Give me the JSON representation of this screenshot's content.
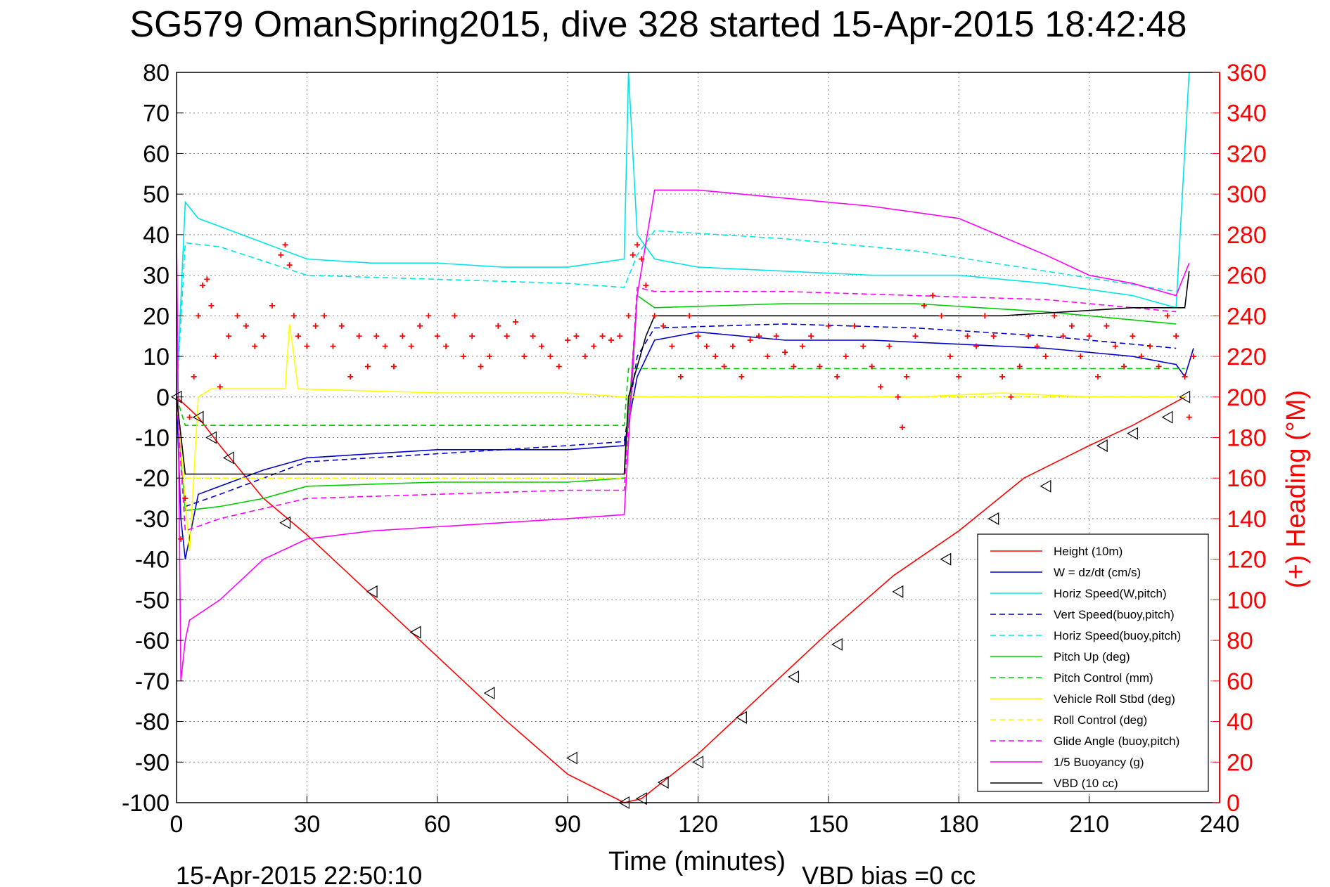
{
  "chart_data": {
    "type": "line",
    "title": "SG579 OmanSpring2015, dive 328 started 15-Apr-2015 18:42:48",
    "xlabel": "Time (minutes)",
    "ylabel_right": "(+) Heading (°M)",
    "xlim": [
      0,
      240
    ],
    "ylim": [
      -100,
      80
    ],
    "ylim_right": [
      0,
      360
    ],
    "x_ticks": [
      "0",
      "30",
      "60",
      "90",
      "120",
      "150",
      "180",
      "210",
      "240"
    ],
    "y_ticks": [
      "80",
      "70",
      "60",
      "50",
      "40",
      "30",
      "20",
      "10",
      "0",
      "-10",
      "-20",
      "-30",
      "-40",
      "-50",
      "-60",
      "-70",
      "-80",
      "-90",
      "-100"
    ],
    "y_ticks_right": [
      "360",
      "340",
      "320",
      "300",
      "280",
      "260",
      "240",
      "220",
      "200",
      "180",
      "160",
      "140",
      "120",
      "100",
      "80",
      "60",
      "40",
      "20",
      "0"
    ],
    "grid": true,
    "legend_position": "bottom-right",
    "footer_left": "15-Apr-2015 22:50:10",
    "footer_right": "VBD bias =0 cc",
    "series": [
      {
        "name": "Height (10m)",
        "color": "#ff0000",
        "style": "solid",
        "x": [
          0,
          5,
          10,
          20,
          30,
          45,
          60,
          75,
          90,
          103,
          107,
          120,
          135,
          150,
          165,
          180,
          195,
          210,
          220,
          232
        ],
        "y": [
          0,
          -5,
          -12,
          -25,
          -34,
          -49,
          -64,
          -79,
          -93,
          -100,
          -99,
          -88,
          -73,
          -58,
          -44,
          -33,
          -20,
          -12,
          -7,
          0
        ]
      },
      {
        "name": "W = dz/dt (cm/s)",
        "color": "#0000cc",
        "style": "solid",
        "x": [
          0,
          1,
          2,
          5,
          10,
          20,
          30,
          45,
          60,
          75,
          90,
          103,
          106,
          110,
          120,
          140,
          160,
          180,
          200,
          220,
          230,
          232,
          234
        ],
        "y": [
          0,
          -30,
          -40,
          -24,
          -22,
          -18,
          -15,
          -14,
          -13,
          -13,
          -13,
          -12,
          5,
          14,
          16,
          14,
          14,
          13,
          12,
          10,
          8,
          5,
          12
        ]
      },
      {
        "name": "Horiz Speed(W,pitch)",
        "color": "#00e5e5",
        "style": "solid",
        "x": [
          0,
          2,
          5,
          10,
          20,
          30,
          45,
          60,
          75,
          90,
          103,
          104,
          106,
          110,
          120,
          140,
          160,
          180,
          200,
          220,
          230,
          233
        ],
        "y": [
          0,
          48,
          44,
          42,
          38,
          34,
          33,
          33,
          32,
          32,
          34,
          80,
          40,
          34,
          32,
          31,
          30,
          30,
          28,
          25,
          22,
          80
        ]
      },
      {
        "name": "Vert Speed(buoy,pitch)",
        "color": "#0000cc",
        "style": "dashed",
        "x": [
          0,
          2,
          10,
          30,
          60,
          90,
          103,
          106,
          110,
          140,
          170,
          200,
          230
        ],
        "y": [
          0,
          -27,
          -24,
          -16,
          -14,
          -12,
          -11,
          10,
          17,
          18,
          17,
          15,
          12
        ]
      },
      {
        "name": "Horiz Speed(buoy,pitch)",
        "color": "#00e5e5",
        "style": "dashed",
        "x": [
          0,
          2,
          10,
          30,
          60,
          90,
          103,
          106,
          110,
          140,
          170,
          200,
          230
        ],
        "y": [
          0,
          38,
          37,
          30,
          29,
          28,
          27,
          35,
          41,
          39,
          36,
          31,
          26
        ]
      },
      {
        "name": "Pitch Up (deg)",
        "color": "#00cc00",
        "style": "solid",
        "x": [
          0,
          2,
          10,
          20,
          30,
          60,
          90,
          103,
          106,
          110,
          140,
          170,
          200,
          230
        ],
        "y": [
          0,
          -28,
          -27,
          -25,
          -22,
          -21,
          -21,
          -20,
          25,
          22,
          23,
          23,
          21,
          18
        ]
      },
      {
        "name": "Pitch Control (mm)",
        "color": "#00cc00",
        "style": "dashed",
        "x": [
          0,
          2,
          103,
          104,
          232
        ],
        "y": [
          0,
          -7,
          -7,
          7,
          7
        ]
      },
      {
        "name": "Vehicle Roll Stbd (deg)",
        "color": "#ffff00",
        "style": "solid",
        "x": [
          0,
          3,
          5,
          8,
          10,
          25,
          26,
          28,
          60,
          90,
          103,
          110,
          130,
          150,
          170,
          190,
          210,
          230
        ],
        "y": [
          0,
          -38,
          0,
          2,
          2,
          2,
          18,
          2,
          1,
          1,
          0,
          0,
          0,
          0,
          0,
          1,
          0,
          0
        ]
      },
      {
        "name": "Roll Control (deg)",
        "color": "#ffff00",
        "style": "dashed",
        "x": [
          0,
          2,
          103,
          104,
          232
        ],
        "y": [
          0,
          -20,
          -20,
          0,
          0
        ]
      },
      {
        "name": "Glide Angle (buoy,pitch)",
        "color": "#ff00ff",
        "style": "dashed",
        "x": [
          0,
          2,
          10,
          30,
          60,
          90,
          103,
          106,
          110,
          140,
          170,
          200,
          230
        ],
        "y": [
          0,
          -33,
          -30,
          -25,
          -24,
          -23,
          -23,
          27,
          26,
          26,
          25,
          24,
          21
        ]
      },
      {
        "name": "1/5 Buoyancy (g)",
        "color": "#ff00ff",
        "style": "solid",
        "x": [
          0,
          1,
          2,
          3,
          10,
          20,
          30,
          45,
          60,
          75,
          90,
          103,
          106,
          110,
          120,
          140,
          160,
          180,
          200,
          210,
          220,
          230,
          233
        ],
        "y": [
          40,
          -70,
          -60,
          -55,
          -50,
          -40,
          -35,
          -33,
          -32,
          -31,
          -30,
          -29,
          25,
          51,
          51,
          49,
          47,
          44,
          35,
          30,
          28,
          25,
          33
        ]
      },
      {
        "name": "VBD (10 cc)",
        "color": "#000000",
        "style": "solid",
        "x": [
          0,
          2,
          103,
          104,
          108,
          110,
          190,
          220,
          232,
          233
        ],
        "y": [
          0,
          -19,
          -19,
          0,
          15,
          20,
          20,
          22,
          22,
          31
        ]
      }
    ],
    "heading_series": {
      "name": "Heading",
      "color": "#ff0000",
      "marker": "+",
      "x": [
        1,
        2,
        3,
        4,
        5,
        6,
        7,
        8,
        9,
        10,
        12,
        14,
        16,
        18,
        20,
        22,
        24,
        25,
        26,
        27,
        28,
        30,
        32,
        34,
        36,
        38,
        40,
        42,
        44,
        46,
        48,
        50,
        52,
        54,
        56,
        58,
        60,
        62,
        64,
        66,
        68,
        70,
        72,
        74,
        76,
        78,
        80,
        82,
        84,
        86,
        88,
        90,
        92,
        94,
        96,
        98,
        100,
        102,
        104,
        105,
        106,
        107,
        108,
        110,
        112,
        114,
        116,
        118,
        120,
        122,
        124,
        126,
        128,
        130,
        132,
        134,
        136,
        138,
        140,
        142,
        144,
        146,
        148,
        150,
        152,
        154,
        156,
        158,
        160,
        162,
        164,
        166,
        167,
        168,
        170,
        172,
        174,
        176,
        178,
        180,
        182,
        184,
        186,
        188,
        190,
        192,
        194,
        196,
        198,
        200,
        202,
        204,
        206,
        208,
        210,
        212,
        214,
        216,
        218,
        220,
        222,
        224,
        226,
        228,
        230,
        232,
        233,
        234
      ],
      "y": [
        130,
        150,
        190,
        210,
        240,
        255,
        258,
        245,
        220,
        205,
        230,
        240,
        235,
        225,
        230,
        245,
        270,
        275,
        265,
        240,
        230,
        225,
        235,
        240,
        225,
        235,
        210,
        230,
        215,
        230,
        225,
        215,
        230,
        225,
        235,
        240,
        230,
        225,
        240,
        220,
        230,
        215,
        220,
        235,
        230,
        237,
        220,
        230,
        225,
        220,
        215,
        228,
        230,
        220,
        225,
        230,
        228,
        230,
        240,
        270,
        275,
        268,
        255,
        240,
        235,
        225,
        210,
        240,
        230,
        225,
        220,
        215,
        225,
        210,
        228,
        230,
        220,
        230,
        222,
        215,
        225,
        230,
        215,
        235,
        210,
        220,
        235,
        225,
        215,
        205,
        225,
        200,
        185,
        210,
        230,
        245,
        250,
        240,
        220,
        210,
        230,
        225,
        240,
        230,
        210,
        200,
        215,
        230,
        225,
        220,
        240,
        230,
        235,
        220,
        230,
        210,
        235,
        225,
        215,
        230,
        220,
        225,
        215,
        240,
        230,
        210,
        190,
        220
      ]
    },
    "triangle_markers": {
      "color": "#000000",
      "x": [
        0,
        5,
        8,
        12,
        25,
        45,
        55,
        72,
        91,
        103,
        107,
        112,
        120,
        130,
        142,
        152,
        166,
        177,
        188,
        200,
        213,
        220,
        228,
        232
      ],
      "y": [
        0,
        -5,
        -10,
        -15,
        -31,
        -48,
        -58,
        -73,
        -89,
        -100,
        -99,
        -95,
        -90,
        -79,
        -69,
        -61,
        -48,
        -40,
        -30,
        -22,
        -12,
        -9,
        -5,
        0
      ]
    }
  }
}
